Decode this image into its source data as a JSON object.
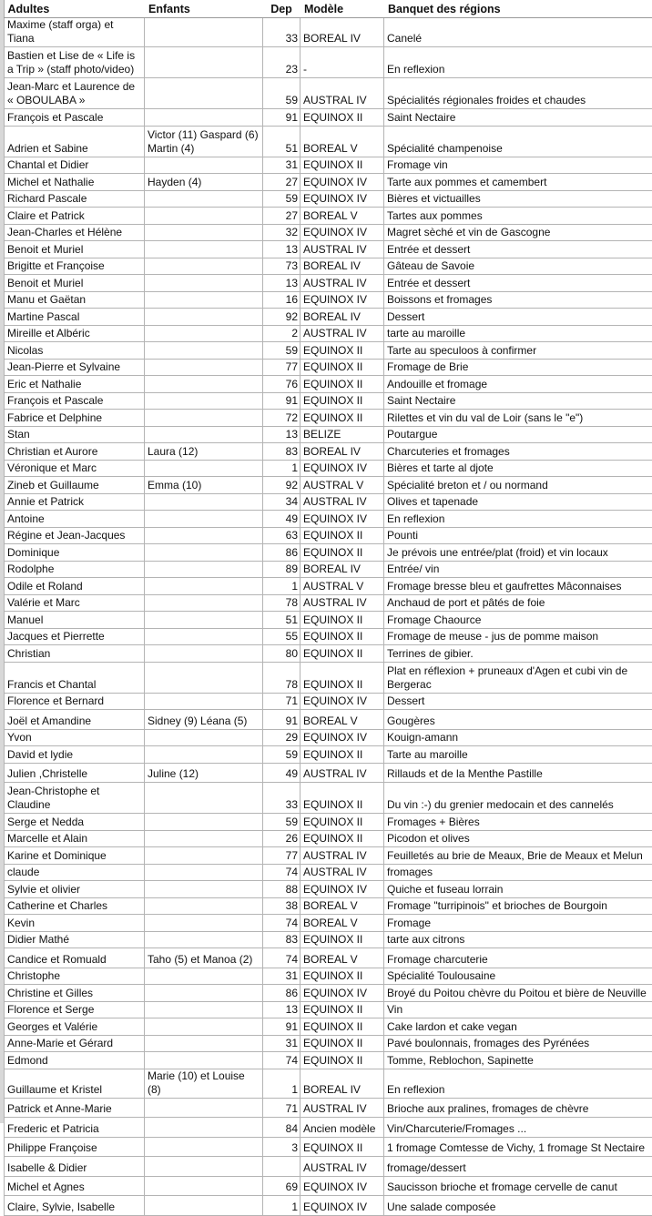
{
  "headers": [
    "Adultes",
    "Enfants",
    "Dep",
    "Modèle",
    "Banquet des régions"
  ],
  "rows": [
    {
      "a": "Maxime (staff orga) et Tiana",
      "e": "",
      "d": "33",
      "m": "BOREAL IV",
      "b": "Canelé"
    },
    {
      "a": "Bastien et Lise de « Life is a Trip » (staff photo/video)",
      "e": "",
      "d": "23",
      "m": "-",
      "b": "En reflexion",
      "h": "d"
    },
    {
      "a": "Jean-Marc et Laurence de « OBOULABA »",
      "e": "",
      "d": "59",
      "m": "AUSTRAL IV",
      "b": "Spécialités régionales froides et chaudes",
      "h": "d"
    },
    {
      "a": "François et Pascale",
      "e": "",
      "d": "91",
      "m": "EQUINOX II",
      "b": "Saint Nectaire"
    },
    {
      "a": "Adrien et Sabine",
      "e": "Victor (11) Gaspard (6) Martin (4)",
      "d": "51",
      "m": "BOREAL V",
      "b": "Spécialité champenoise",
      "h": "d"
    },
    {
      "a": "Chantal et Didier",
      "e": "",
      "d": "31",
      "m": "EQUINOX II",
      "b": "Fromage vin"
    },
    {
      "a": "Michel et Nathalie",
      "e": "Hayden (4)",
      "d": "27",
      "m": "EQUINOX IV",
      "b": "Tarte aux pommes et camembert"
    },
    {
      "a": "Richard Pascale",
      "e": "",
      "d": "59",
      "m": "EQUINOX IV",
      "b": "Bières et victuailles"
    },
    {
      "a": "Claire et Patrick",
      "e": "",
      "d": "27",
      "m": "BOREAL V",
      "b": "Tartes aux pommes"
    },
    {
      "a": "Jean-Charles et Hélène",
      "e": "",
      "d": "32",
      "m": "EQUINOX IV",
      "b": "Magret sèché et vin de Gascogne"
    },
    {
      "a": "Benoit et Muriel",
      "e": "",
      "d": "13",
      "m": "AUSTRAL IV",
      "b": "Entrée et dessert"
    },
    {
      "a": "Brigitte et Françoise",
      "e": "",
      "d": "73",
      "m": "BOREAL IV",
      "b": "Gâteau de Savoie"
    },
    {
      "a": "Benoit et Muriel",
      "e": "",
      "d": "13",
      "m": "AUSTRAL IV",
      "b": "Entrée et dessert"
    },
    {
      "a": "Manu et Gaëtan",
      "e": "",
      "d": "16",
      "m": "EQUINOX IV",
      "b": "Boissons et fromages"
    },
    {
      "a": "Martine Pascal",
      "e": "",
      "d": "92",
      "m": "BOREAL IV",
      "b": "Dessert"
    },
    {
      "a": "Mireille et Albéric",
      "e": "",
      "d": "2",
      "m": "AUSTRAL IV",
      "b": "tarte au maroille"
    },
    {
      "a": "Nicolas",
      "e": "",
      "d": "59",
      "m": "EQUINOX II",
      "b": "Tarte au speculoos à confirmer"
    },
    {
      "a": "Jean-Pierre et Sylvaine",
      "e": "",
      "d": "77",
      "m": "EQUINOX II",
      "b": "Fromage de Brie"
    },
    {
      "a": "Eric et Nathalie",
      "e": "",
      "d": "76",
      "m": "EQUINOX II",
      "b": "Andouille et fromage"
    },
    {
      "a": "François et Pascale",
      "e": "",
      "d": "91",
      "m": "EQUINOX II",
      "b": "Saint Nectaire"
    },
    {
      "a": "Fabrice et Delphine",
      "e": "",
      "d": "72",
      "m": "EQUINOX II",
      "b": "Rilettes et vin du val de Loir (sans le \"e\")"
    },
    {
      "a": "Stan",
      "e": "",
      "d": "13",
      "m": "BELIZE",
      "b": "Poutargue"
    },
    {
      "a": "Christian et Aurore",
      "e": "Laura (12)",
      "d": "83",
      "m": "BOREAL IV",
      "b": "Charcuteries et fromages"
    },
    {
      "a": "Véronique et Marc",
      "e": "",
      "d": "1",
      "m": "EQUINOX IV",
      "b": "Bières et tarte al djote"
    },
    {
      "a": "Zineb et Guillaume",
      "e": "Emma (10)",
      "d": "92",
      "m": "AUSTRAL V",
      "b": "Spécialité breton et / ou normand"
    },
    {
      "a": "Annie et Patrick",
      "e": "",
      "d": "34",
      "m": "AUSTRAL IV",
      "b": "Olives et tapenade"
    },
    {
      "a": "Antoine",
      "e": "",
      "d": "49",
      "m": "EQUINOX IV",
      "b": "En reflexion"
    },
    {
      "a": "Régine et Jean-Jacques",
      "e": "",
      "d": "63",
      "m": "EQUINOX II",
      "b": "Pounti"
    },
    {
      "a": "Dominique",
      "e": "",
      "d": "86",
      "m": "EQUINOX II",
      "b": "Je prévois une entrée/plat (froid) et vin locaux"
    },
    {
      "a": "Rodolphe",
      "e": "",
      "d": "89",
      "m": "BOREAL IV",
      "b": "Entrée/ vin"
    },
    {
      "a": "Odile et Roland",
      "e": "",
      "d": "1",
      "m": "AUSTRAL V",
      "b": "Fromage bresse bleu et gaufrettes Mâconnaises"
    },
    {
      "a": "Valérie et Marc",
      "e": "",
      "d": "78",
      "m": "AUSTRAL IV",
      "b": "Anchaud de port et pâtés de foie"
    },
    {
      "a": "Manuel",
      "e": "",
      "d": "51",
      "m": "EQUINOX II",
      "b": "Fromage Chaource"
    },
    {
      "a": "Jacques et Pierrette",
      "e": "",
      "d": "55",
      "m": "EQUINOX II",
      "b": "Fromage de meuse - jus de pomme maison"
    },
    {
      "a": "Christian",
      "e": "",
      "d": "80",
      "m": "EQUINOX II",
      "b": "Terrines de gibier."
    },
    {
      "a": "Francis et Chantal",
      "e": "",
      "d": "78",
      "m": "EQUINOX II",
      "b": "Plat en réflexion + pruneaux d'Agen et cubi vin de Bergerac",
      "h": "d"
    },
    {
      "a": "Florence et Bernard",
      "e": "",
      "d": "71",
      "m": "EQUINOX IV",
      "b": "Dessert"
    },
    {
      "a": "Joël et Amandine",
      "e": "Sidney (9) Léana (5)",
      "d": "91",
      "m": "BOREAL V",
      "b": "Gougères",
      "h": "t"
    },
    {
      "a": "Yvon",
      "e": "",
      "d": "29",
      "m": "EQUINOX IV",
      "b": "Kouign-amann"
    },
    {
      "a": "David et lydie",
      "e": "",
      "d": "59",
      "m": "EQUINOX II",
      "b": "Tarte au maroille"
    },
    {
      "a": "Julien ,Christelle",
      "e": "Juline (12)",
      "d": "49",
      "m": "AUSTRAL IV",
      "b": "Rillauds et de la Menthe Pastille",
      "h": "t"
    },
    {
      "a": "Jean-Christophe et Claudine",
      "e": "",
      "d": "33",
      "m": "EQUINOX II",
      "b": "Du vin :-) du grenier medocain et des cannelés",
      "h": "d"
    },
    {
      "a": "Serge et Nedda",
      "e": "",
      "d": "59",
      "m": "EQUINOX II",
      "b": "Fromages + Bières"
    },
    {
      "a": "Marcelle et Alain",
      "e": "",
      "d": "26",
      "m": "EQUINOX II",
      "b": "Picodon et olives"
    },
    {
      "a": "Karine et Dominique",
      "e": "",
      "d": "77",
      "m": "AUSTRAL IV",
      "b": "Feuilletés au brie de Meaux, Brie de Meaux et Melun"
    },
    {
      "a": "claude",
      "e": "",
      "d": "74",
      "m": "AUSTRAL IV",
      "b": "fromages"
    },
    {
      "a": "Sylvie et olivier",
      "e": "",
      "d": "88",
      "m": "EQUINOX IV",
      "b": "Quiche et fuseau lorrain"
    },
    {
      "a": "Catherine et Charles",
      "e": "",
      "d": "38",
      "m": "BOREAL V",
      "b": "Fromage \"turripinois\" et brioches de Bourgoin"
    },
    {
      "a": "Kevin",
      "e": "",
      "d": "74",
      "m": "BOREAL V",
      "b": "Fromage"
    },
    {
      "a": "Didier Mathé",
      "e": "",
      "d": "83",
      "m": "EQUINOX II",
      "b": "tarte aux citrons"
    },
    {
      "a": "Candice et Romuald",
      "e": "Taho (5) et Manoa (2)",
      "d": "74",
      "m": "BOREAL V",
      "b": "Fromage charcuterie",
      "h": "t"
    },
    {
      "a": "Christophe",
      "e": "",
      "d": "31",
      "m": "EQUINOX II",
      "b": "Spécialité Toulousaine"
    },
    {
      "a": "Christine et Gilles",
      "e": "",
      "d": "86",
      "m": "EQUINOX IV",
      "b": "Broyé du Poitou chèvre du Poitou et bière de Neuville"
    },
    {
      "a": "Florence et Serge",
      "e": "",
      "d": "13",
      "m": "EQUINOX II",
      "b": "Vin"
    },
    {
      "a": "Georges et Valérie",
      "e": "",
      "d": "91",
      "m": "EQUINOX II",
      "b": "Cake lardon et cake vegan"
    },
    {
      "a": "Anne-Marie et Gérard",
      "e": "",
      "d": "31",
      "m": "EQUINOX II",
      "b": "Pavé boulonnais, fromages des Pyrénées"
    },
    {
      "a": "Edmond",
      "e": "",
      "d": "74",
      "m": "EQUINOX II",
      "b": "Tomme, Reblochon, Sapinette"
    },
    {
      "a": "Guillaume et Kristel",
      "e": "Marie (10) et Louise (8)",
      "d": "1",
      "m": "BOREAL IV",
      "b": "En reflexion",
      "h": "t"
    },
    {
      "a": "Patrick et Anne-Marie",
      "e": "",
      "d": "71",
      "m": "AUSTRAL IV",
      "b": "Brioche aux pralines, fromages de chèvre",
      "h": "t"
    },
    {
      "a": "Frederic et Patricia",
      "e": "",
      "d": "84",
      "m": "Ancien modèle",
      "b": "Vin/Charcuterie/Fromages ...",
      "h": "t"
    },
    {
      "a": "Philippe Françoise",
      "e": "",
      "d": "3",
      "m": "EQUINOX II",
      "b": "1 fromage Comtesse de Vichy, 1 fromage St Nectaire",
      "h": "t"
    },
    {
      "a": "Isabelle & Didier",
      "e": "",
      "d": "",
      "m": "AUSTRAL IV",
      "b": "fromage/dessert",
      "h": "t"
    },
    {
      "a": "Michel et Agnes",
      "e": "",
      "d": "69",
      "m": "EQUINOX IV",
      "b": "Saucisson brioche et fromage cervelle de canut",
      "h": "t"
    },
    {
      "a": "Claire, Sylvie, Isabelle",
      "e": "",
      "d": "1",
      "m": "EQUINOX IV",
      "b": "Une salade composée",
      "h": "t"
    }
  ]
}
